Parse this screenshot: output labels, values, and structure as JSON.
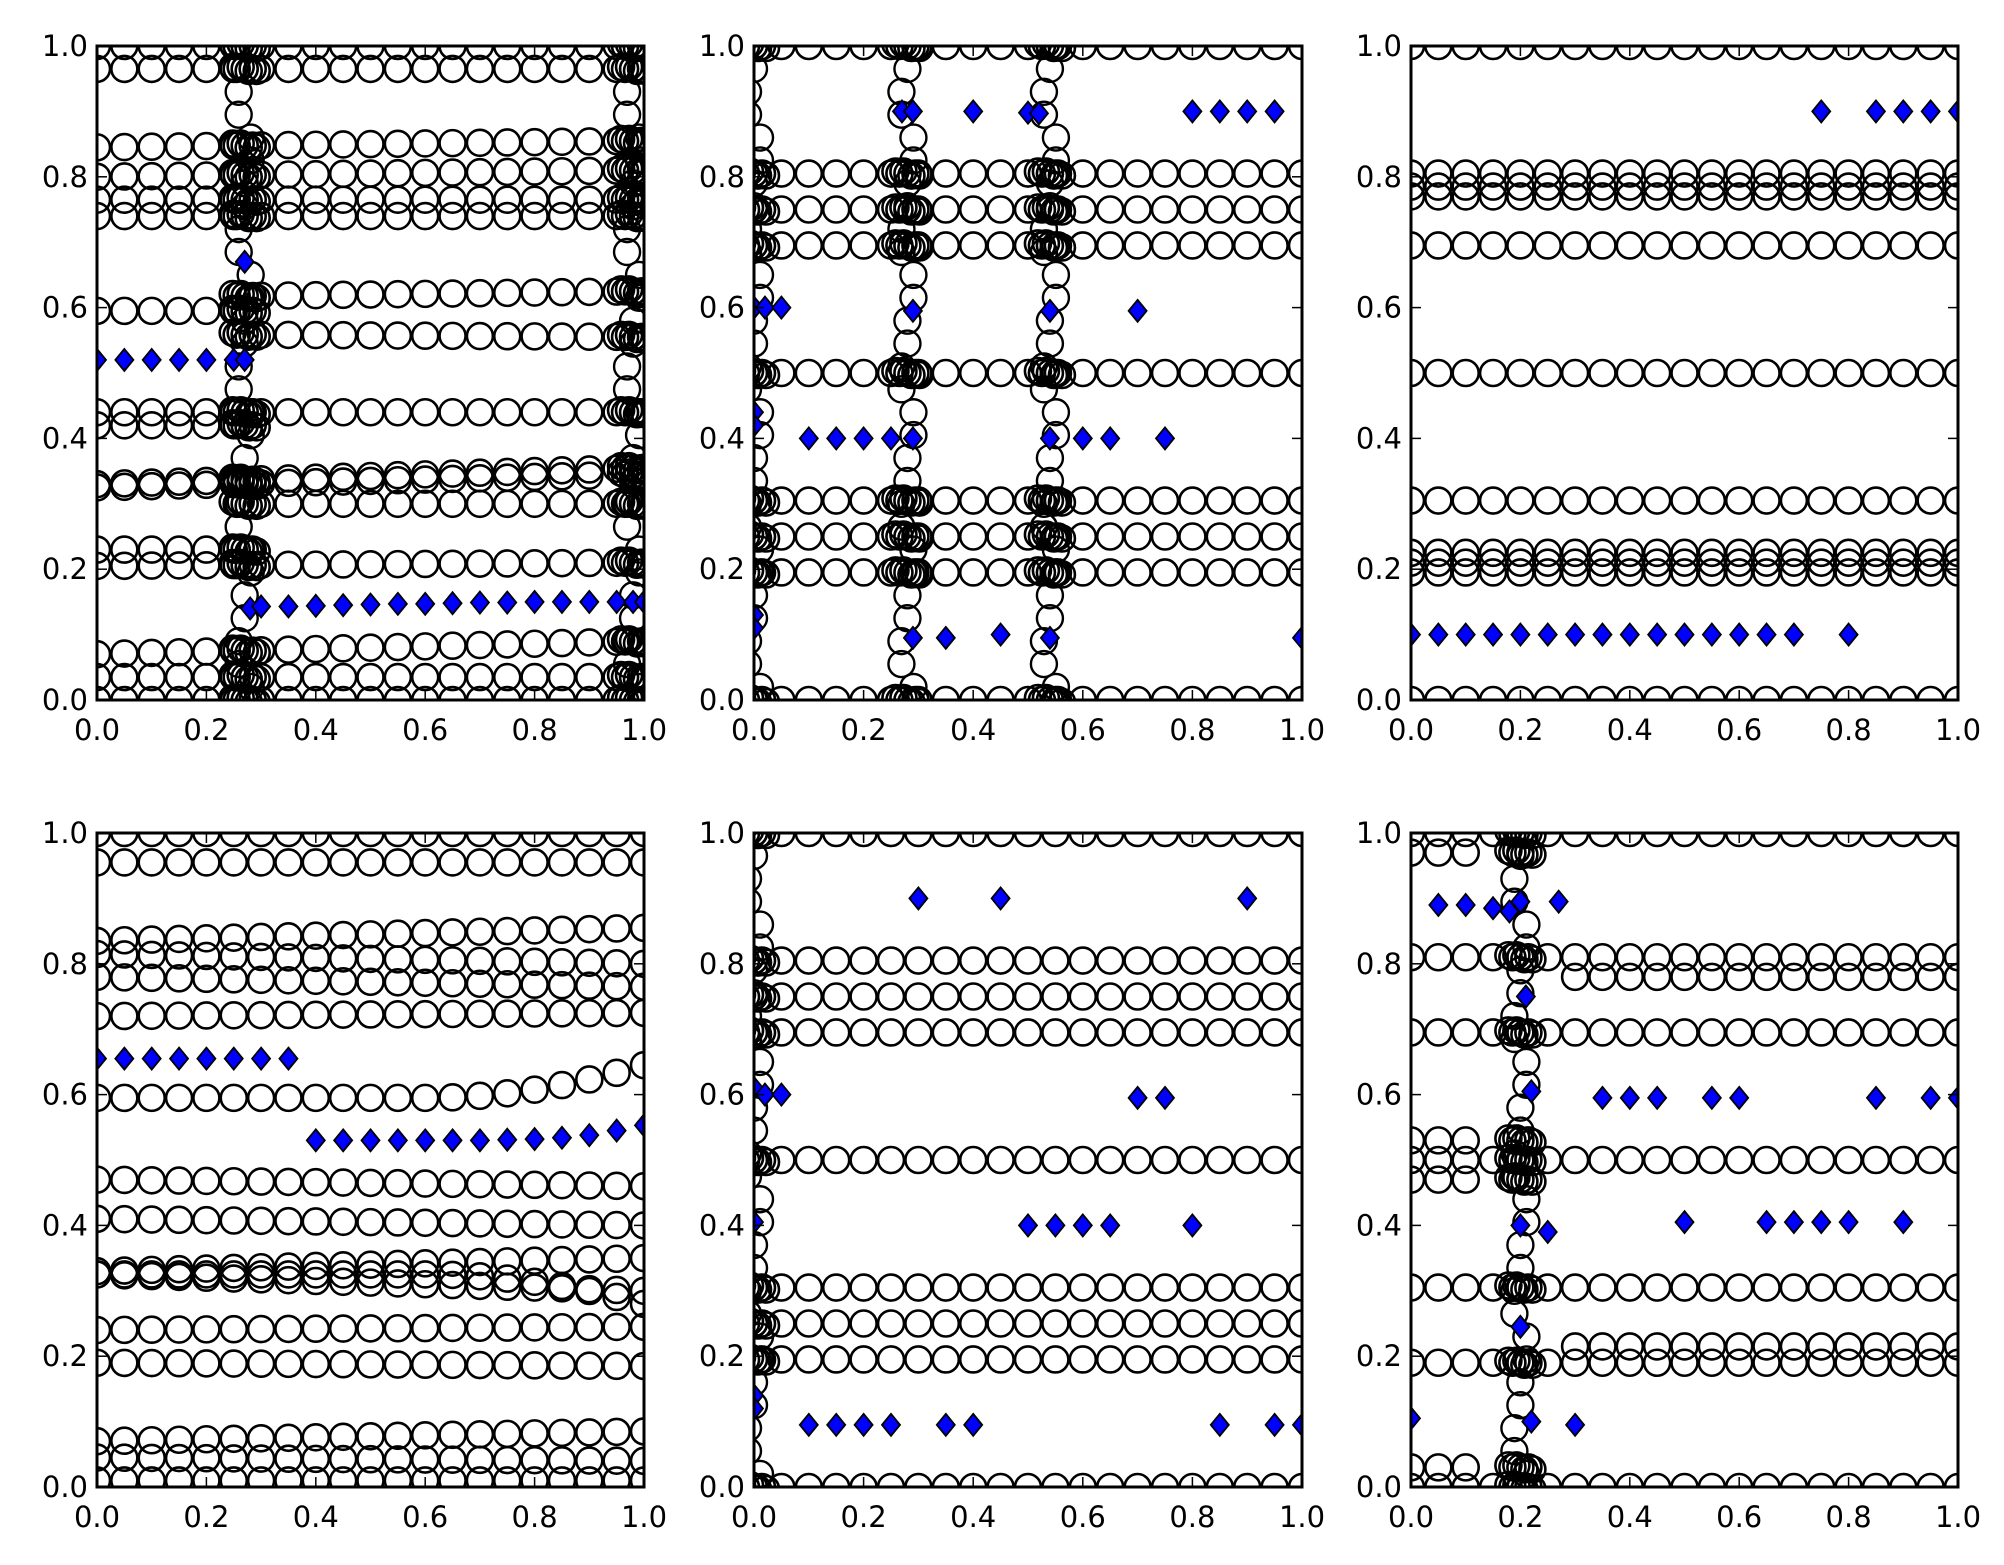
{
  "chart_data": [
    {
      "type": "scatter",
      "panel": "top-left",
      "xlim": [
        0,
        1
      ],
      "ylim": [
        0,
        1
      ],
      "xticks": [
        "0.0",
        "0.2",
        "0.4",
        "0.6",
        "0.8",
        "1.0"
      ],
      "yticks": [
        "0.0",
        "0.2",
        "0.4",
        "0.6",
        "0.8",
        "1.0"
      ],
      "circle_rows": [
        {
          "y0": 1.0,
          "y1": 1.0
        },
        {
          "y0": 0.965,
          "y1": 0.965
        },
        {
          "y0": 0.845,
          "y1": 0.855
        },
        {
          "y0": 0.8,
          "y1": 0.81
        },
        {
          "y0": 0.765,
          "y1": 0.765
        },
        {
          "y0": 0.74,
          "y1": 0.74
        },
        {
          "y0": 0.595,
          "y1": 0.595,
          "xmax": 0.25
        },
        {
          "y0": 0.615,
          "y1": 0.625,
          "xmin": 0.3
        },
        {
          "y0": 0.56,
          "y1": 0.555,
          "xmin": 0.3
        },
        {
          "y0": 0.44,
          "y1": 0.44
        },
        {
          "y0": 0.42,
          "y1": 0.42,
          "xmax": 0.25
        },
        {
          "y0": 0.33,
          "y1": 0.355
        },
        {
          "y0": 0.325,
          "y1": 0.345,
          "xmax": 0.95
        },
        {
          "y0": 0.3,
          "y1": 0.3,
          "xmin": 0.3
        },
        {
          "y0": 0.23,
          "y1": 0.23,
          "xmax": 0.25
        },
        {
          "y0": 0.205,
          "y1": 0.21
        },
        {
          "y0": 0.07,
          "y1": 0.09
        },
        {
          "y0": 0.035,
          "y1": 0.035
        },
        {
          "y0": 0.0,
          "y1": 0.0
        }
      ],
      "clusters": [
        0.27,
        0.98
      ],
      "diamonds": [
        [
          0,
          0.52
        ],
        [
          0.05,
          0.52
        ],
        [
          0.1,
          0.52
        ],
        [
          0.15,
          0.52
        ],
        [
          0.2,
          0.52
        ],
        [
          0.25,
          0.52
        ],
        [
          0.27,
          0.52
        ],
        [
          0.27,
          0.67
        ],
        [
          0.28,
          0.14
        ],
        [
          0.3,
          0.143
        ],
        [
          0.35,
          0.143
        ],
        [
          0.4,
          0.144
        ],
        [
          0.45,
          0.145
        ],
        [
          0.5,
          0.146
        ],
        [
          0.55,
          0.147
        ],
        [
          0.6,
          0.147
        ],
        [
          0.65,
          0.148
        ],
        [
          0.7,
          0.149
        ],
        [
          0.75,
          0.149
        ],
        [
          0.8,
          0.15
        ],
        [
          0.85,
          0.15
        ],
        [
          0.9,
          0.15
        ],
        [
          0.95,
          0.15
        ],
        [
          0.98,
          0.15
        ],
        [
          1.0,
          0.15
        ]
      ]
    },
    {
      "type": "scatter",
      "panel": "top-middle",
      "xlim": [
        0,
        1
      ],
      "ylim": [
        0,
        1
      ],
      "xticks": [
        "0.0",
        "0.2",
        "0.4",
        "0.6",
        "0.8",
        "1.0"
      ],
      "yticks": [
        "0.0",
        "0.2",
        "0.4",
        "0.6",
        "0.8",
        "1.0"
      ],
      "circle_rows": [
        {
          "y0": 1.0,
          "y1": 1.0
        },
        {
          "y0": 0.805,
          "y1": 0.805
        },
        {
          "y0": 0.75,
          "y1": 0.75
        },
        {
          "y0": 0.695,
          "y1": 0.695
        },
        {
          "y0": 0.5,
          "y1": 0.5
        },
        {
          "y0": 0.305,
          "y1": 0.305
        },
        {
          "y0": 0.25,
          "y1": 0.25
        },
        {
          "y0": 0.195,
          "y1": 0.195
        },
        {
          "y0": 0.0,
          "y1": 0.0
        }
      ],
      "clusters": [
        0.0,
        0.28,
        0.54
      ],
      "diamonds": [
        [
          0.27,
          0.9
        ],
        [
          0.29,
          0.9
        ],
        [
          0.4,
          0.9
        ],
        [
          0.5,
          0.898
        ],
        [
          0.52,
          0.897
        ],
        [
          0.8,
          0.9
        ],
        [
          0.85,
          0.9
        ],
        [
          0.9,
          0.9
        ],
        [
          0.95,
          0.9
        ],
        [
          0.0,
          0.6
        ],
        [
          0.02,
          0.6
        ],
        [
          0.05,
          0.6
        ],
        [
          0.29,
          0.595
        ],
        [
          0.54,
          0.595
        ],
        [
          0.7,
          0.595
        ],
        [
          0.0,
          0.44
        ],
        [
          0.0,
          0.42
        ],
        [
          0.1,
          0.4
        ],
        [
          0.15,
          0.4
        ],
        [
          0.2,
          0.4
        ],
        [
          0.25,
          0.4
        ],
        [
          0.29,
          0.4
        ],
        [
          0.54,
          0.4
        ],
        [
          0.6,
          0.4
        ],
        [
          0.65,
          0.4
        ],
        [
          0.75,
          0.4
        ],
        [
          0.0,
          0.13
        ],
        [
          0.0,
          0.11
        ],
        [
          0.29,
          0.095
        ],
        [
          0.35,
          0.095
        ],
        [
          0.45,
          0.1
        ],
        [
          0.54,
          0.095
        ],
        [
          1.0,
          0.095
        ]
      ]
    },
    {
      "type": "scatter",
      "panel": "top-right",
      "xlim": [
        0,
        1
      ],
      "ylim": [
        0,
        1
      ],
      "xticks": [
        "0.0",
        "0.2",
        "0.4",
        "0.6",
        "0.8",
        "1.0"
      ],
      "yticks": [
        "0.0",
        "0.2",
        "0.4",
        "0.6",
        "0.8",
        "1.0"
      ],
      "circle_rows": [
        {
          "y0": 1.0,
          "y1": 1.0
        },
        {
          "y0": 0.805,
          "y1": 0.805
        },
        {
          "y0": 0.785,
          "y1": 0.785
        },
        {
          "y0": 0.77,
          "y1": 0.77
        },
        {
          "y0": 0.695,
          "y1": 0.695
        },
        {
          "y0": 0.5,
          "y1": 0.5
        },
        {
          "y0": 0.305,
          "y1": 0.305
        },
        {
          "y0": 0.225,
          "y1": 0.225
        },
        {
          "y0": 0.21,
          "y1": 0.21
        },
        {
          "y0": 0.195,
          "y1": 0.195
        },
        {
          "y0": 0.0,
          "y1": 0.0
        }
      ],
      "clusters": [],
      "diamonds": [
        [
          0.75,
          0.9
        ],
        [
          0.85,
          0.9
        ],
        [
          0.9,
          0.9
        ],
        [
          0.95,
          0.9
        ],
        [
          1.0,
          0.9
        ],
        [
          0,
          0.1
        ],
        [
          0.05,
          0.1
        ],
        [
          0.1,
          0.1
        ],
        [
          0.15,
          0.1
        ],
        [
          0.2,
          0.1
        ],
        [
          0.25,
          0.1
        ],
        [
          0.3,
          0.1
        ],
        [
          0.35,
          0.1
        ],
        [
          0.4,
          0.1
        ],
        [
          0.45,
          0.1
        ],
        [
          0.5,
          0.1
        ],
        [
          0.55,
          0.1
        ],
        [
          0.6,
          0.1
        ],
        [
          0.65,
          0.1
        ],
        [
          0.7,
          0.1
        ],
        [
          0.8,
          0.1
        ]
      ]
    },
    {
      "type": "scatter",
      "panel": "bottom-left",
      "xlim": [
        0,
        1
      ],
      "ylim": [
        0,
        1
      ],
      "xticks": [
        "0.0",
        "0.2",
        "0.4",
        "0.6",
        "0.8",
        "1.0"
      ],
      "yticks": [
        "0.0",
        "0.2",
        "0.4",
        "0.6",
        "0.8",
        "1.0"
      ],
      "circle_rows": [
        {
          "y0": 1.0,
          "y1": 1.0
        },
        {
          "y0": 0.955,
          "y1": 0.955
        },
        {
          "y0": 0.835,
          "y1": 0.855
        },
        {
          "y0": 0.815,
          "y1": 0.8
        },
        {
          "y0": 0.78,
          "y1": 0.765
        },
        {
          "y0": 0.72,
          "y1": 0.725
        },
        {
          "y0": 0.595,
          "y1": 0.595,
          "curve": [
            0.6,
            0.645
          ]
        },
        {
          "y0": 0.47,
          "y1": 0.46
        },
        {
          "y0": 0.41,
          "y1": 0.4
        },
        {
          "y0": 0.33,
          "y1": 0.35
        },
        {
          "y0": 0.325,
          "y1": 0.3
        },
        {
          "y0": 0.325,
          "y1": 0.325,
          "curve": [
            0.6,
            0.28
          ]
        },
        {
          "y0": 0.24,
          "y1": 0.245
        },
        {
          "y0": 0.19,
          "y1": 0.185
        },
        {
          "y0": 0.07,
          "y1": 0.085
        },
        {
          "y0": 0.045,
          "y1": 0.04
        },
        {
          "y0": 0.01,
          "y1": 0.01
        }
      ],
      "clusters": [],
      "diamonds": [
        [
          0,
          0.655
        ],
        [
          0.05,
          0.655
        ],
        [
          0.1,
          0.655
        ],
        [
          0.15,
          0.655
        ],
        [
          0.2,
          0.655
        ],
        [
          0.25,
          0.655
        ],
        [
          0.3,
          0.655
        ],
        [
          0.35,
          0.655
        ],
        [
          0.4,
          0.53
        ],
        [
          0.45,
          0.53
        ],
        [
          0.5,
          0.53
        ],
        [
          0.55,
          0.53
        ],
        [
          0.6,
          0.53
        ],
        [
          0.65,
          0.53
        ],
        [
          0.7,
          0.53
        ],
        [
          0.75,
          0.531
        ],
        [
          0.8,
          0.532
        ],
        [
          0.85,
          0.534
        ],
        [
          0.9,
          0.538
        ],
        [
          0.95,
          0.545
        ],
        [
          1.0,
          0.553
        ]
      ]
    },
    {
      "type": "scatter",
      "panel": "bottom-middle",
      "xlim": [
        0,
        1
      ],
      "ylim": [
        0,
        1
      ],
      "xticks": [
        "0.0",
        "0.2",
        "0.4",
        "0.6",
        "0.8",
        "1.0"
      ],
      "yticks": [
        "0.0",
        "0.2",
        "0.4",
        "0.6",
        "0.8",
        "1.0"
      ],
      "circle_rows": [
        {
          "y0": 1.0,
          "y1": 1.0
        },
        {
          "y0": 0.805,
          "y1": 0.805
        },
        {
          "y0": 0.75,
          "y1": 0.75
        },
        {
          "y0": 0.695,
          "y1": 0.695
        },
        {
          "y0": 0.5,
          "y1": 0.5
        },
        {
          "y0": 0.305,
          "y1": 0.305
        },
        {
          "y0": 0.25,
          "y1": 0.25
        },
        {
          "y0": 0.195,
          "y1": 0.195
        },
        {
          "y0": 0.0,
          "y1": 0.0
        }
      ],
      "clusters": [
        0.0
      ],
      "diamonds": [
        [
          0.3,
          0.9
        ],
        [
          0.45,
          0.9
        ],
        [
          0.9,
          0.9
        ],
        [
          0.0,
          0.61
        ],
        [
          0.02,
          0.6
        ],
        [
          0.05,
          0.6
        ],
        [
          0.7,
          0.595
        ],
        [
          0.75,
          0.595
        ],
        [
          0.0,
          0.405
        ],
        [
          0.5,
          0.4
        ],
        [
          0.55,
          0.4
        ],
        [
          0.6,
          0.4
        ],
        [
          0.65,
          0.4
        ],
        [
          0.8,
          0.4
        ],
        [
          0.0,
          0.14
        ],
        [
          0.0,
          0.12
        ],
        [
          0.1,
          0.095
        ],
        [
          0.15,
          0.095
        ],
        [
          0.2,
          0.095
        ],
        [
          0.25,
          0.095
        ],
        [
          0.35,
          0.095
        ],
        [
          0.4,
          0.095
        ],
        [
          0.85,
          0.095
        ],
        [
          0.95,
          0.095
        ],
        [
          1.0,
          0.095
        ]
      ]
    },
    {
      "type": "scatter",
      "panel": "bottom-right",
      "xlim": [
        0,
        1
      ],
      "ylim": [
        0,
        1
      ],
      "xticks": [
        "0.0",
        "0.2",
        "0.4",
        "0.6",
        "0.8",
        "1.0"
      ],
      "yticks": [
        "0.0",
        "0.2",
        "0.4",
        "0.6",
        "0.8",
        "1.0"
      ],
      "circle_rows": [
        {
          "y0": 1.0,
          "y1": 1.0
        },
        {
          "y0": 0.81,
          "y1": 0.81
        },
        {
          "y0": 0.78,
          "y1": 0.78,
          "xmin": 0.28
        },
        {
          "y0": 0.695,
          "y1": 0.695
        },
        {
          "y0": 0.5,
          "y1": 0.5
        },
        {
          "y0": 0.305,
          "y1": 0.305
        },
        {
          "y0": 0.215,
          "y1": 0.215,
          "xmin": 0.28
        },
        {
          "y0": 0.19,
          "y1": 0.19
        },
        {
          "y0": 0.0,
          "y1": 0.0
        },
        {
          "y0": 0.97,
          "y1": 0.97,
          "xmax": 0.15
        },
        {
          "y0": 0.53,
          "y1": 0.53,
          "xmax": 0.15
        },
        {
          "y0": 0.47,
          "y1": 0.47,
          "xmax": 0.15
        },
        {
          "y0": 0.03,
          "y1": 0.03,
          "xmax": 0.15
        }
      ],
      "clusters": [
        0.2
      ],
      "diamonds": [
        [
          0.05,
          0.89
        ],
        [
          0.1,
          0.89
        ],
        [
          0.15,
          0.885
        ],
        [
          0.18,
          0.88
        ],
        [
          0.2,
          0.895
        ],
        [
          0.27,
          0.895
        ],
        [
          0.21,
          0.75
        ],
        [
          0.22,
          0.605
        ],
        [
          0.35,
          0.595
        ],
        [
          0.4,
          0.595
        ],
        [
          0.45,
          0.595
        ],
        [
          0.55,
          0.595
        ],
        [
          0.6,
          0.595
        ],
        [
          0.85,
          0.595
        ],
        [
          0.95,
          0.595
        ],
        [
          1.0,
          0.595
        ],
        [
          0.2,
          0.4
        ],
        [
          0.25,
          0.39
        ],
        [
          0.5,
          0.405
        ],
        [
          0.65,
          0.405
        ],
        [
          0.7,
          0.405
        ],
        [
          0.75,
          0.405
        ],
        [
          0.8,
          0.405
        ],
        [
          0.9,
          0.405
        ],
        [
          0.2,
          0.245
        ],
        [
          0.0,
          0.105
        ],
        [
          0.22,
          0.1
        ],
        [
          0.3,
          0.095
        ]
      ]
    }
  ],
  "colors": {
    "diamond_fill": "#0000ff",
    "marker_edge": "#000000",
    "axes": "#000000",
    "background": "#ffffff"
  }
}
